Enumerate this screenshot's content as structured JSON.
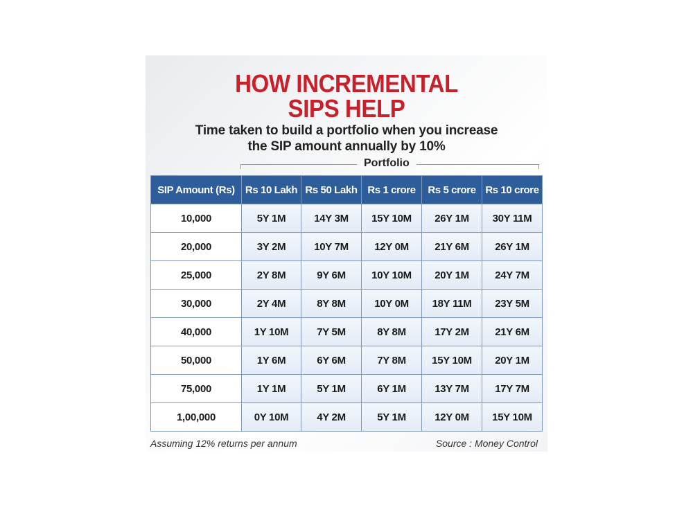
{
  "header": {
    "title_lines": [
      "HOW INCREMENTAL",
      "SIPS HELP"
    ],
    "subtitle_lines": [
      "Time taken to build a portfolio when you increase",
      "the SIP amount annually by 10%"
    ]
  },
  "table": {
    "group_label": "Portfolio",
    "columns": [
      "SIP Amount (Rs)",
      "Rs 10 Lakh",
      "Rs 50 Lakh",
      "Rs 1 crore",
      "Rs 5 crore",
      "Rs 10 crore"
    ],
    "rows": [
      [
        "10,000",
        "5Y 1M",
        "14Y 3M",
        "15Y 10M",
        "26Y 1M",
        "30Y 11M"
      ],
      [
        "20,000",
        "3Y 2M",
        "10Y 7M",
        "12Y 0M",
        "21Y 6M",
        "26Y 1M"
      ],
      [
        "25,000",
        "2Y 8M",
        "9Y 6M",
        "10Y 10M",
        "20Y 1M",
        "24Y 7M"
      ],
      [
        "30,000",
        "2Y 4M",
        "8Y 8M",
        "10Y 0M",
        "18Y 11M",
        "23Y 5M"
      ],
      [
        "40,000",
        "1Y 10M",
        "7Y 5M",
        "8Y 8M",
        "17Y 2M",
        "21Y 6M"
      ],
      [
        "50,000",
        "1Y 6M",
        "6Y 6M",
        "7Y 8M",
        "15Y 10M",
        "20Y 1M"
      ],
      [
        "75,000",
        "1Y 1M",
        "5Y 1M",
        "6Y 1M",
        "13Y 7M",
        "17Y 7M"
      ],
      [
        "1,00,000",
        "0Y 10M",
        "4Y 2M",
        "5Y 1M",
        "12Y 0M",
        "15Y 10M"
      ]
    ]
  },
  "footer": {
    "note": "Assuming 12% returns per annum",
    "source": "Source : Money Control"
  }
}
